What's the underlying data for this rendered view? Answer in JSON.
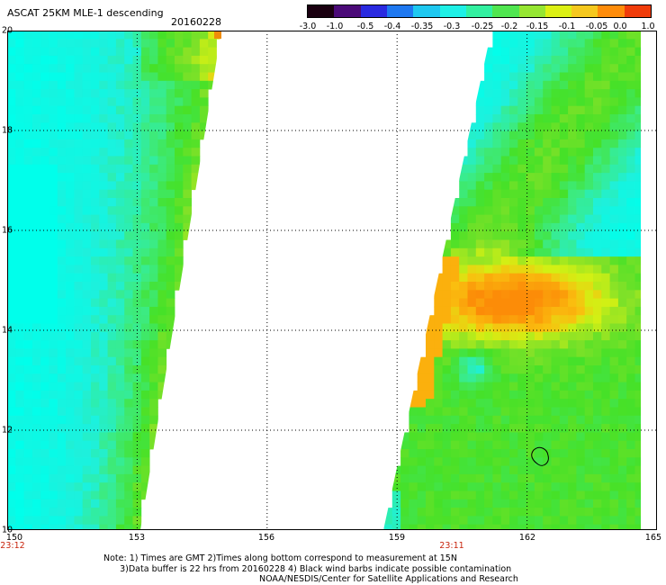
{
  "title": "ASCAT 25KM MLE-1 descending",
  "date": "20160228",
  "colorbar": {
    "ticks": [
      "-3.0",
      "-1.0",
      "-0.5",
      "-0.4",
      "-0.35",
      "-0.3",
      "-0.25",
      "-0.2",
      "-0.15",
      "-0.1",
      "-0.05",
      "0.0",
      "1.0"
    ],
    "colors": [
      "#1a0010",
      "#4b0a78",
      "#2a2ae0",
      "#1e78f0",
      "#1ec8f0",
      "#1ef0e6",
      "#32f0a0",
      "#50e650",
      "#96e632",
      "#dcf014",
      "#f5c81e",
      "#ff8c0a",
      "#f03c0a"
    ]
  },
  "map": {
    "lat_ticks": [
      "20",
      "18",
      "16",
      "14",
      "12",
      "10"
    ],
    "lon_ticks": [
      "150",
      "153",
      "156",
      "159",
      "162",
      "165"
    ],
    "lon_range": [
      150,
      165
    ],
    "lat_range": [
      10,
      20
    ],
    "swath_times": [
      "23:12",
      "23:11"
    ],
    "contamination_contour": "black wind barbs region near 162.2E 11.6N"
  },
  "note_text": "Note: 1) Times are GMT 2)Times along bottom correspond to measurement at 15N\n      3)Data buffer is 22 hrs from 20160228 4) Black wind barbs indicate possible contamination",
  "credit": "NOAA/NESDIS/Center for Satellite Applications and Research"
}
